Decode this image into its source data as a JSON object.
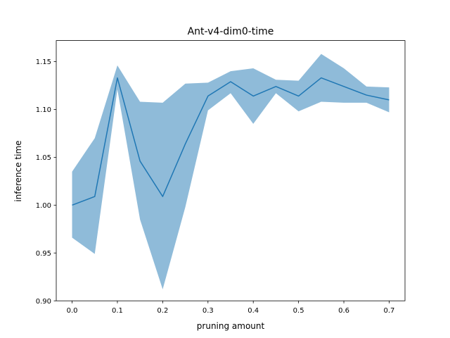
{
  "chart_data": {
    "type": "line",
    "title": "Ant-v4-dim0-time",
    "xlabel": "pruning amount",
    "ylabel": "inference time",
    "xlim": [
      -0.035,
      0.735
    ],
    "ylim": [
      0.9,
      1.172
    ],
    "grid": false,
    "x_ticks": [
      0.0,
      0.1,
      0.2,
      0.3,
      0.4,
      0.5,
      0.6,
      0.7
    ],
    "x_tick_labels": [
      "0.0",
      "0.1",
      "0.2",
      "0.3",
      "0.4",
      "0.5",
      "0.6",
      "0.7"
    ],
    "y_ticks": [
      0.9,
      0.95,
      1.0,
      1.05,
      1.1,
      1.15
    ],
    "y_tick_labels": [
      "0.90",
      "0.95",
      "1.00",
      "1.05",
      "1.10",
      "1.15"
    ],
    "series": [
      {
        "x": [
          0.0,
          0.05,
          0.1,
          0.15,
          0.2,
          0.25,
          0.3,
          0.35,
          0.4,
          0.45,
          0.5,
          0.55,
          0.6,
          0.65,
          0.7
        ],
        "values": [
          1.0,
          1.009,
          1.133,
          1.046,
          1.009,
          1.064,
          1.114,
          1.129,
          1.114,
          1.124,
          1.114,
          1.133,
          1.124,
          1.115,
          1.11
        ],
        "lower": [
          0.966,
          0.949,
          1.121,
          0.985,
          0.912,
          0.998,
          1.099,
          1.117,
          1.085,
          1.117,
          1.098,
          1.108,
          1.107,
          1.107,
          1.097
        ],
        "upper": [
          1.035,
          1.07,
          1.146,
          1.108,
          1.107,
          1.127,
          1.128,
          1.14,
          1.143,
          1.131,
          1.13,
          1.158,
          1.143,
          1.124,
          1.123
        ]
      }
    ],
    "colors": {
      "line": "#1f77b4",
      "band": "#1f77b4",
      "band_opacity": 0.5
    }
  }
}
